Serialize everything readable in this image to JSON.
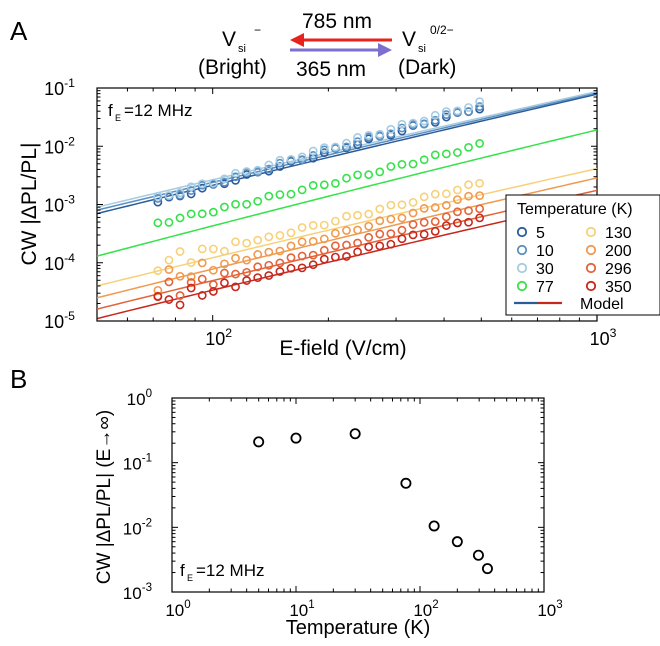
{
  "panel_a": {
    "label": "A",
    "scheme": {
      "left_state": "V",
      "left_sub": "si",
      "left_sup": "−",
      "left_desc": "(Bright)",
      "right_state": "V",
      "right_sub": "si",
      "right_sup": "0/2−",
      "right_desc": "(Dark)",
      "top_arrow_label": "785 nm",
      "bottom_arrow_label": "365 nm",
      "top_arrow_color": "#e8231f",
      "bottom_arrow_color": "#7b6fd0"
    },
    "freq_label": {
      "f": "f",
      "sub": "E",
      "value": "=12 MHz"
    },
    "ylabel": "CW |ΔPL/PL|",
    "xlabel": "E-field (V/cm)",
    "legend_title": "Temperature (K)",
    "legend_model": "Model"
  },
  "panel_b": {
    "label": "B",
    "freq_label": {
      "f": "f",
      "sub": "E",
      "value": "=12 MHz"
    },
    "ylabel": "CW |ΔPL/PL| (E→∞)",
    "xlabel": "Temperature (K)"
  },
  "chart_data": [
    {
      "type": "scatter",
      "xscale": "log",
      "yscale": "log",
      "xlim": [
        50,
        1000
      ],
      "ylim": [
        1e-05,
        0.1
      ],
      "x_ticks": [
        {
          "v": 100,
          "base": "10",
          "exp": "2"
        },
        {
          "v": 1000,
          "base": "10",
          "exp": "3"
        }
      ],
      "y_ticks": [
        {
          "v": 1e-05,
          "base": "10",
          "exp": "-5"
        },
        {
          "v": 0.0001,
          "base": "10",
          "exp": "-4"
        },
        {
          "v": 0.001,
          "base": "10",
          "exp": "-3"
        },
        {
          "v": 0.01,
          "base": "10",
          "exp": "-2"
        },
        {
          "v": 0.1,
          "base": "10",
          "exp": "-1"
        }
      ],
      "series": [
        {
          "name": "5",
          "color": "#2b5c9a",
          "x_range": [
            72,
            495
          ],
          "y_range": [
            0.0011,
            0.046
          ],
          "model_y": [
            0.0007,
            0.09
          ]
        },
        {
          "name": "10",
          "color": "#5c8fc0",
          "x_range": [
            72,
            495
          ],
          "y_range": [
            0.0012,
            0.048
          ],
          "model_y": [
            0.0008,
            0.095
          ]
        },
        {
          "name": "30",
          "color": "#a5cce3",
          "x_range": [
            72,
            495
          ],
          "y_range": [
            0.0013,
            0.055
          ],
          "model_y": [
            0.0009,
            0.1
          ]
        },
        {
          "name": "77",
          "color": "#36e24a",
          "x_range": [
            72,
            495
          ],
          "y_range": [
            0.00048,
            0.0105
          ],
          "model_y": [
            0.00013,
            0.024
          ]
        },
        {
          "name": "130",
          "color": "#f7d17a",
          "x_range": [
            72,
            495
          ],
          "y_range": [
            0.0001,
            0.0023
          ],
          "model_y": [
            4e-05,
            0.0052
          ]
        },
        {
          "name": "200",
          "color": "#f09a50",
          "x_range": [
            72,
            495
          ],
          "y_range": [
            5e-05,
            0.0015
          ],
          "model_y": [
            2.5e-05,
            0.0036
          ]
        },
        {
          "name": "296",
          "color": "#e3643a",
          "x_range": [
            72,
            495
          ],
          "y_range": [
            3e-05,
            0.0009
          ],
          "model_y": [
            1.6e-05,
            0.0022
          ]
        },
        {
          "name": "350",
          "color": "#c7281c",
          "x_range": [
            72,
            495
          ],
          "y_range": [
            2e-05,
            0.0006
          ],
          "model_y": [
            1.1e-05,
            0.0015
          ]
        }
      ],
      "legend_position": "lower-right"
    },
    {
      "type": "scatter",
      "xscale": "log",
      "yscale": "log",
      "xlim": [
        1,
        1000
      ],
      "ylim": [
        0.001,
        1
      ],
      "x_ticks": [
        {
          "v": 1,
          "base": "10",
          "exp": "0"
        },
        {
          "v": 10,
          "base": "10",
          "exp": "1"
        },
        {
          "v": 100,
          "base": "10",
          "exp": "2"
        },
        {
          "v": 1000,
          "base": "10",
          "exp": "3"
        }
      ],
      "y_ticks": [
        {
          "v": 0.001,
          "base": "10",
          "exp": "-3"
        },
        {
          "v": 0.01,
          "base": "10",
          "exp": "-2"
        },
        {
          "v": 0.1,
          "base": "10",
          "exp": "-1"
        },
        {
          "v": 1,
          "base": "10",
          "exp": "0"
        }
      ],
      "x": [
        5,
        10,
        30,
        77,
        130,
        200,
        296,
        350
      ],
      "y": [
        0.21,
        0.24,
        0.28,
        0.048,
        0.0105,
        0.006,
        0.0037,
        0.0023
      ],
      "marker_color": "#000000"
    }
  ]
}
